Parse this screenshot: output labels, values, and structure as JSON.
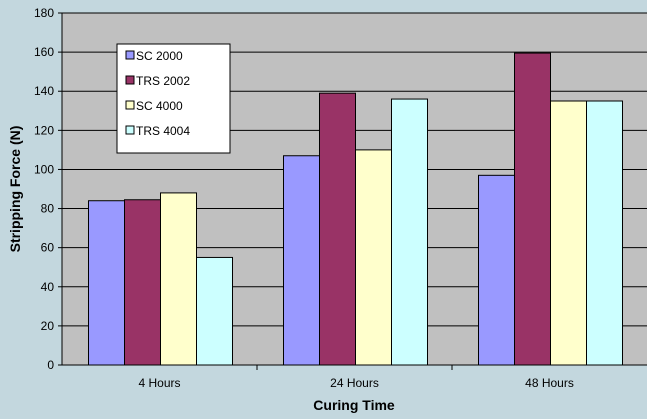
{
  "chart_data": {
    "type": "bar",
    "categories": [
      "4 Hours",
      "24 Hours",
      "48 Hours"
    ],
    "series": [
      {
        "name": "SC 2000",
        "color": "#9999ff",
        "values": [
          84,
          107,
          97
        ]
      },
      {
        "name": "TRS 2002",
        "color": "#993366",
        "values": [
          84.5,
          139,
          159.5
        ]
      },
      {
        "name": "SC 4000",
        "color": "#ffffcc",
        "values": [
          88,
          110,
          135
        ]
      },
      {
        "name": "TRS 4004",
        "color": "#ccffff",
        "values": [
          55,
          136,
          135
        ]
      }
    ],
    "xlabel": "Curing Time",
    "ylabel": "Stripping Force (N)",
    "ylim": [
      0,
      180
    ],
    "yticks": [
      "0",
      "20",
      "40",
      "60",
      "80",
      "100",
      "120",
      "140",
      "160",
      "180"
    ],
    "grid": true,
    "legend_position": "top-left inside plot",
    "colors": {
      "background": "#c3d7de",
      "plot_area": "#c0c0c0",
      "gridline": "#000000"
    }
  }
}
